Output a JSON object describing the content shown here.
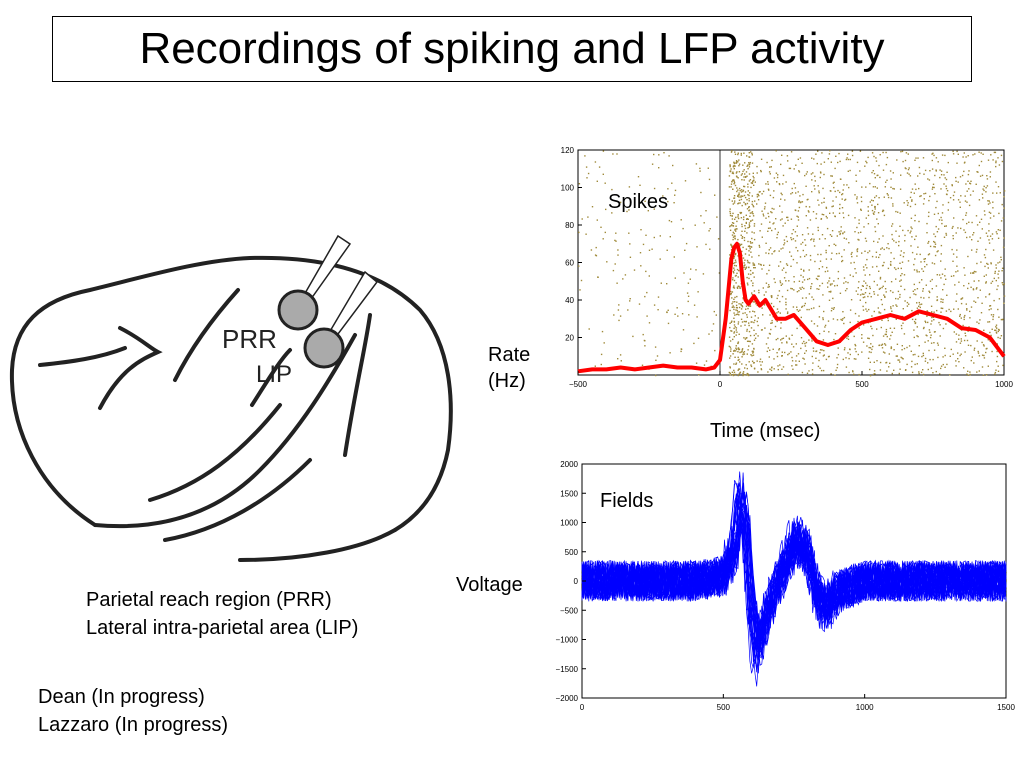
{
  "slide": {
    "title": "Recordings of spiking and LFP activity"
  },
  "brain": {
    "label_prr": "PRR",
    "label_lip": "LIP",
    "captions": [
      "Parietal reach region (PRR)",
      "Lateral intra-parietal area (LIP)"
    ],
    "credits": [
      "Dean (In progress)",
      "Lazzaro (In progress)"
    ]
  },
  "colors": {
    "rate_line": "#ff0000",
    "raster_dots": "#a08a3a",
    "lfp_traces": "#0000ff"
  },
  "chart_data": [
    {
      "type": "line",
      "inset_label": "Spikes",
      "ylabel": "Rate\n(Hz)",
      "ylabel_lines": [
        "Rate",
        "(Hz)"
      ],
      "xlabel": "Time (msec)",
      "xlim": [
        -500,
        1000
      ],
      "ylim": [
        0,
        120
      ],
      "xticks": [
        -500,
        0,
        500,
        1000
      ],
      "yticks": [
        20,
        40,
        60,
        80,
        100,
        120
      ],
      "vertical_marker_x": 0,
      "background": "spike raster (dense after t=0)",
      "series": [
        {
          "x": [
            -500,
            -450,
            -400,
            -350,
            -300,
            -250,
            -200,
            -150,
            -100,
            -50,
            -20,
            0,
            20,
            40,
            50,
            60,
            70,
            80,
            90,
            100,
            110,
            120,
            140,
            160,
            180,
            200,
            230,
            260,
            300,
            340,
            380,
            420,
            460,
            500,
            550,
            600,
            650,
            700,
            750,
            800,
            850,
            900,
            950,
            1000
          ],
          "y": [
            2,
            3,
            3,
            4,
            3,
            4,
            5,
            4,
            4,
            3,
            4,
            8,
            30,
            62,
            68,
            70,
            65,
            50,
            40,
            38,
            40,
            42,
            37,
            40,
            35,
            30,
            30,
            32,
            25,
            18,
            16,
            18,
            24,
            28,
            30,
            32,
            30,
            34,
            32,
            30,
            25,
            24,
            20,
            10
          ]
        }
      ]
    },
    {
      "type": "line",
      "inset_label": "Fields",
      "ylabel": "Voltage",
      "xlabel": "",
      "xlim": [
        0,
        1500
      ],
      "ylim": [
        -2000,
        2000
      ],
      "xticks": [
        0,
        500,
        1000,
        1500
      ],
      "yticks": [
        -2000,
        -1500,
        -1000,
        -500,
        0,
        500,
        1000,
        1500,
        2000
      ],
      "series": [
        {
          "description_trace": "mean LFP waveform (many overlaid noisy trials)",
          "x": [
            0,
            100,
            200,
            300,
            400,
            500,
            540,
            560,
            580,
            600,
            620,
            650,
            680,
            720,
            760,
            800,
            830,
            870,
            900,
            1000,
            1100,
            1200,
            1300,
            1400,
            1500
          ],
          "y": [
            0,
            0,
            0,
            0,
            0,
            100,
            600,
            1500,
            1000,
            -600,
            -1300,
            -700,
            -200,
            300,
            800,
            500,
            -300,
            -500,
            -200,
            0,
            0,
            0,
            0,
            0,
            0
          ]
        }
      ]
    }
  ]
}
